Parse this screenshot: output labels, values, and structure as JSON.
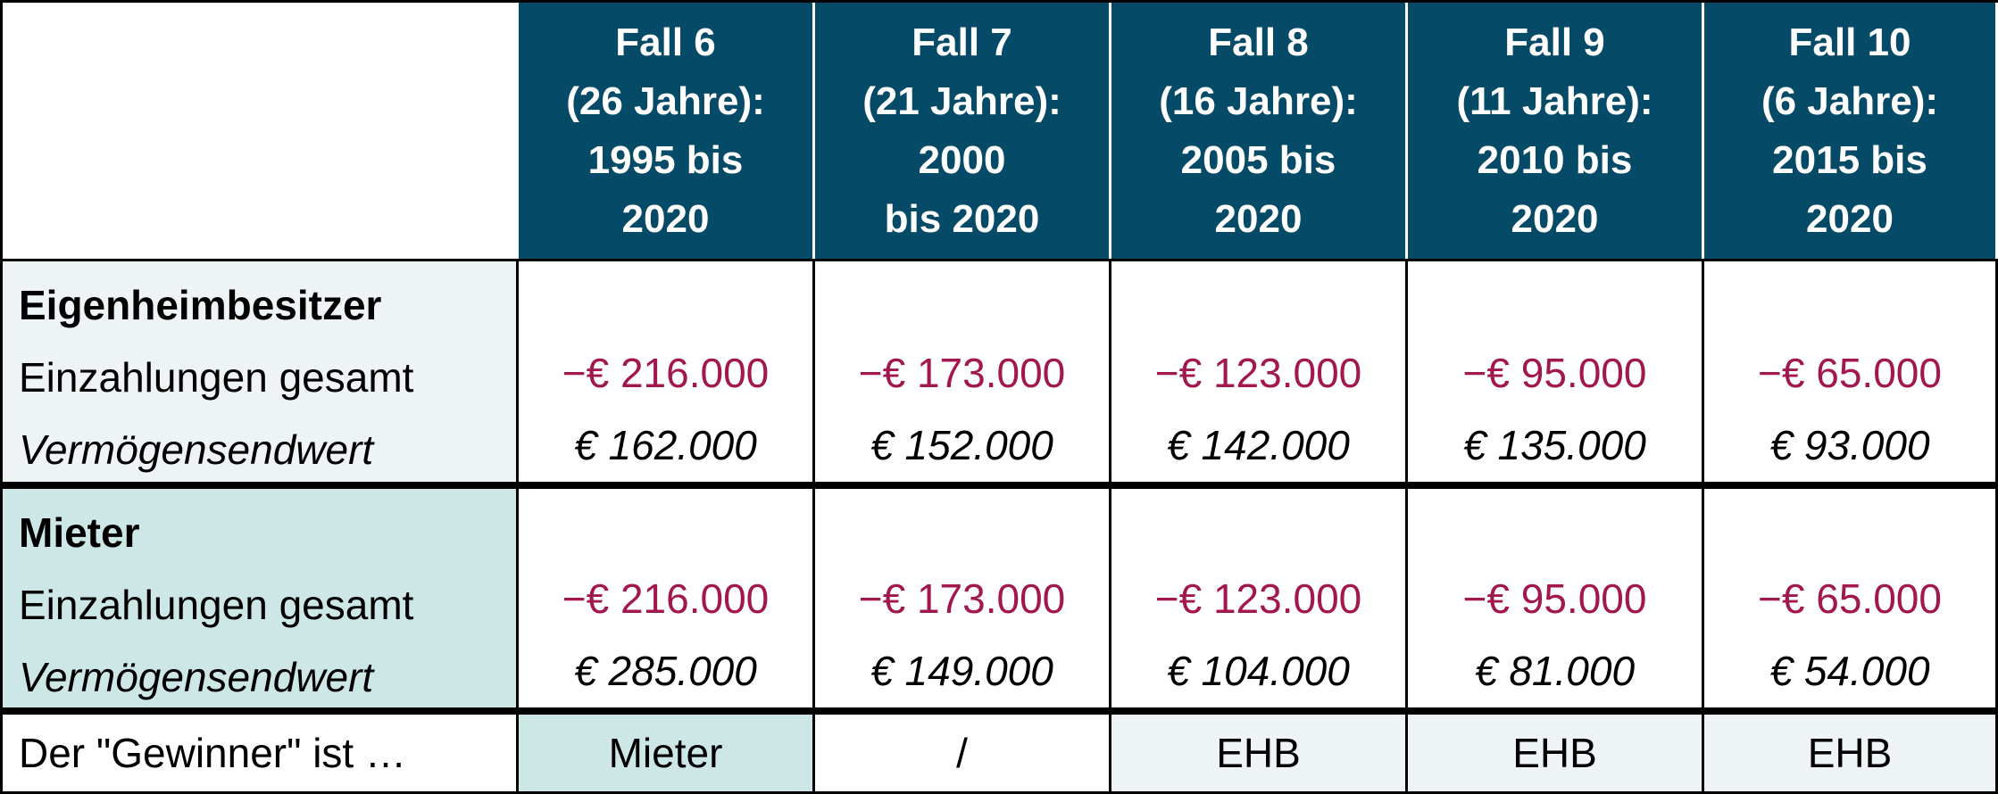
{
  "headers": [
    {
      "lines": [
        "Fall 6",
        "(26 Jahre):",
        "1995 bis",
        "2020"
      ]
    },
    {
      "lines": [
        "Fall 7",
        "(21 Jahre):",
        "2000",
        "bis 2020"
      ]
    },
    {
      "lines": [
        "Fall 8",
        "(16 Jahre):",
        "2005 bis",
        "2020"
      ]
    },
    {
      "lines": [
        "Fall 9",
        "(11 Jahre):",
        "2010 bis",
        "2020"
      ]
    },
    {
      "lines": [
        "Fall 10",
        "(6 Jahre):",
        "2015 bis",
        "2020"
      ]
    }
  ],
  "sections": [
    {
      "title": "Eigenheimbesitzer",
      "rows": [
        {
          "label": "Einzahlungen gesamt",
          "values": [
            "−€ 216.000",
            "−€ 173.000",
            "−€ 123.000",
            "−€ 95.000",
            "−€ 65.000"
          ]
        },
        {
          "label": "Vermögensendwert",
          "values": [
            "€ 162.000",
            "€ 152.000",
            "€ 142.000",
            "€ 135.000",
            "€ 93.000"
          ]
        }
      ]
    },
    {
      "title": "Mieter",
      "rows": [
        {
          "label": "Einzahlungen gesamt",
          "values": [
            "−€ 216.000",
            "−€ 173.000",
            "−€ 123.000",
            "−€ 95.000",
            "−€ 65.000"
          ]
        },
        {
          "label": "Vermögensendwert",
          "values": [
            "€ 285.000",
            "€ 149.000",
            "€ 104.000",
            "€ 81.000",
            "€ 54.000"
          ]
        }
      ]
    }
  ],
  "winner": {
    "label": "Der \"Gewinner\" ist …",
    "values": [
      "Mieter",
      "/",
      "EHB",
      "EHB",
      "EHB"
    ]
  }
}
